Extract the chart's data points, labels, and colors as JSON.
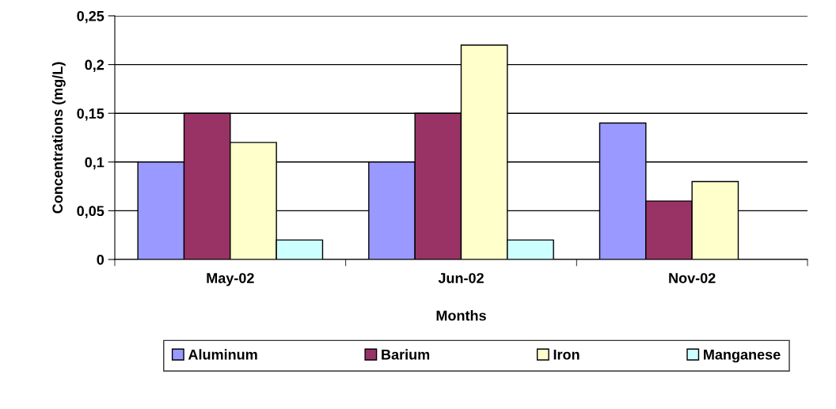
{
  "chart_data": {
    "type": "bar",
    "xlabel": "Months",
    "ylabel": "Concentrations (mg/L)",
    "categories": [
      "May-02",
      "Jun-02",
      "Nov-02"
    ],
    "series": [
      {
        "name": "Aluminum",
        "color": "#9999ff",
        "values": [
          0.1,
          0.1,
          0.14
        ]
      },
      {
        "name": "Barium",
        "color": "#993366",
        "values": [
          0.15,
          0.15,
          0.06
        ]
      },
      {
        "name": "Iron",
        "color": "#ffffcc",
        "values": [
          0.12,
          0.22,
          0.08
        ]
      },
      {
        "name": "Manganese",
        "color": "#ccffff",
        "values": [
          0.02,
          0.02,
          null
        ]
      }
    ],
    "ylim": [
      0,
      0.25
    ],
    "yticks": [
      0,
      {
        "value": 0.05,
        "label": "0,05"
      },
      {
        "value": 0.1,
        "label": "0,1"
      },
      {
        "value": 0.15,
        "label": "0,15"
      },
      {
        "value": 0.2,
        "label": "0,2"
      },
      {
        "value": 0.25,
        "label": "0,25"
      }
    ],
    "grid": "y",
    "legend": "bottom"
  }
}
